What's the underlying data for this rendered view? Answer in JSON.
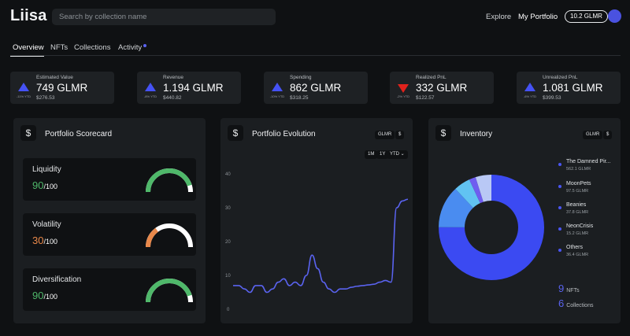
{
  "app": {
    "logo": "Liisa"
  },
  "search": {
    "placeholder": "Search by collection name"
  },
  "header": {
    "explore": "Explore",
    "my_portfolio": "My Portfolio",
    "balance": "10.2 GLMR"
  },
  "tabs": [
    {
      "label": "Overview",
      "active": true
    },
    {
      "label": "NFTs",
      "active": false
    },
    {
      "label": "Collections",
      "active": false
    },
    {
      "label": "Activity",
      "active": false,
      "notification_dot": true
    }
  ],
  "stats": [
    {
      "label": "Estimated Value",
      "value": "749 GLMR",
      "sub": "$276.53",
      "change": "-11% YTD",
      "direction": "up"
    },
    {
      "label": "Revenue",
      "value": "1.194 GLMR",
      "sub": "$440.82",
      "change": "-8% YTD",
      "direction": "up"
    },
    {
      "label": "Spending",
      "value": "862 GLMR",
      "sub": "$318.25",
      "change": "-10% YTD",
      "direction": "up"
    },
    {
      "label": "Realized PnL",
      "value": "332 GLMR",
      "sub": "$122.57",
      "change": "-2% YTD",
      "direction": "down"
    },
    {
      "label": "Unrealized PnL",
      "value": "1.081 GLMR",
      "sub": "$399.53",
      "change": "-6% YTD",
      "direction": "up"
    }
  ],
  "scorecard": {
    "icon": "dollar-icon",
    "title": "Portfolio Scorecard",
    "metrics": [
      {
        "label": "Liquidity",
        "score": "90",
        "max": "/100",
        "fraction": 0.9,
        "color": "#4fb86a"
      },
      {
        "label": "Volatility",
        "score": "30",
        "max": "/100",
        "fraction": 0.3,
        "color": "#e8884a"
      },
      {
        "label": "Diversification",
        "score": "90",
        "max": "/100",
        "fraction": 0.9,
        "color": "#4fb86a"
      }
    ]
  },
  "evolution": {
    "icon": "dollar-icon",
    "title": "Portfolio Evolution",
    "currency_options": [
      "GLMR",
      "$"
    ],
    "range_options": [
      "1M",
      "1Y",
      "YTD"
    ],
    "y_ticks": [
      "40",
      "30",
      "20",
      "10",
      "0"
    ],
    "chart_data": {
      "type": "line",
      "ylim": [
        0,
        40
      ],
      "y_ticks": [
        0,
        10,
        20,
        30,
        40
      ],
      "values": [
        7,
        7,
        6,
        5,
        7,
        7,
        5,
        6,
        8,
        9,
        7,
        8,
        7,
        10,
        16,
        12,
        8,
        6,
        5,
        6,
        6,
        6.5,
        6.8,
        7,
        7.2,
        7.4,
        8,
        8.5,
        8,
        30,
        32,
        32.5
      ],
      "line_color": "#5a63f0"
    }
  },
  "inventory": {
    "icon": "dollar-icon",
    "title": "Inventory",
    "currency_options": [
      "GLMR",
      "$"
    ],
    "items": [
      {
        "name": "The Damned Pir...",
        "value": "562.1 GLMR",
        "amount": 562.1,
        "color": "#3b4af2"
      },
      {
        "name": "MoonPets",
        "value": "97.5 GLMR",
        "amount": 97.5,
        "color": "#4a8cf0"
      },
      {
        "name": "Beanies",
        "value": "37.8 GLMR",
        "amount": 37.8,
        "color": "#61c3f2"
      },
      {
        "name": "NeonCrisis",
        "value": "15.2 GLMR",
        "amount": 15.2,
        "color": "#6f5df0"
      },
      {
        "name": "Others",
        "value": "36.4 GLMR",
        "amount": 36.4,
        "color": "#b9c8f5"
      }
    ],
    "nfts_count": "9",
    "nfts_label": "NFTs",
    "collections_count": "6",
    "collections_label": "Collections"
  }
}
